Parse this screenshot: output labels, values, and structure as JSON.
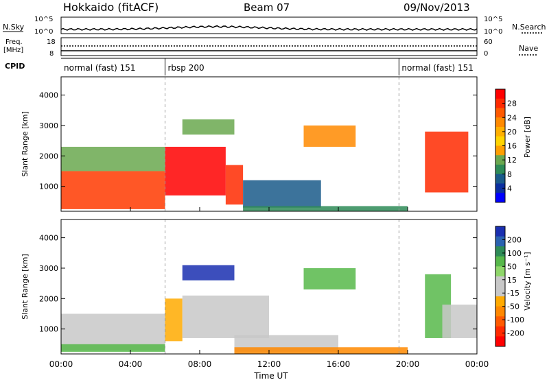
{
  "header": {
    "station": "Hokkaido (fitACF)",
    "beam": "Beam 07",
    "date": "09/Nov/2013"
  },
  "top_panels": {
    "nsky": {
      "left_label": "N.Sky",
      "right_label": "N.Search",
      "left_ticks": [
        "10^5",
        "10^0"
      ],
      "right_ticks": [
        "10^5",
        "10^0"
      ]
    },
    "freq": {
      "left_label_1": "Freq.",
      "left_label_2": "[MHz]",
      "right_label": "Nave",
      "left_ticks": [
        "18",
        "8"
      ],
      "right_ticks": [
        "60",
        "0"
      ]
    },
    "cpid": {
      "label": "CPID",
      "modes": [
        {
          "name": "normal (fast) 151",
          "start_h": 0,
          "end_h": 6
        },
        {
          "name": "rbsp 200",
          "start_h": 6,
          "end_h": 19.5
        },
        {
          "name": "normal (fast) 151",
          "start_h": 19.5,
          "end_h": 24
        }
      ]
    }
  },
  "colorbar_power": {
    "title": "Power [dB]",
    "ticks": [
      "28",
      "24",
      "20",
      "16",
      "12",
      "8",
      "4"
    ],
    "colors": [
      "#ff0000",
      "#ff2a00",
      "#ff5a00",
      "#ff8a00",
      "#ffb000",
      "#ffd400",
      "#ff9f00",
      "#6aa84f",
      "#2e8b57",
      "#1a5a8a",
      "#0b2fa0",
      "#0000ff"
    ]
  },
  "colorbar_velocity": {
    "title": "Velocity [m s⁻¹]",
    "ticks": [
      "200",
      "100",
      "50",
      "15",
      "-15",
      "-50",
      "-100",
      "-200"
    ],
    "colors": [
      "#1a2fb0",
      "#2a62b0",
      "#2e8b57",
      "#57b84a",
      "#8fd66a",
      "#c8c8c8",
      "#c8c8c8",
      "#ffaa00",
      "#ff8800",
      "#ff5a00",
      "#ff2a00",
      "#ff0000"
    ]
  },
  "axes": {
    "ylabel": "Slant Range [km]",
    "xlabel": "Time UT",
    "xticks": [
      "00:00",
      "04:00",
      "08:00",
      "12:00",
      "16:00",
      "20:00",
      "00:00"
    ],
    "yticks": [
      "1000",
      "2000",
      "3000",
      "4000"
    ]
  },
  "chart_data": [
    {
      "type": "heatmap",
      "title": "Power [dB]",
      "xlabel": "Time UT",
      "ylabel": "Slant Range [km]",
      "xlim": [
        0,
        24
      ],
      "ylim": [
        180,
        4600
      ],
      "zrange": [
        0,
        30
      ],
      "regions": [
        {
          "t0": 0.0,
          "t1": 6.0,
          "r0": 250,
          "r1": 1500,
          "value": 22,
          "color": "#ff3a00"
        },
        {
          "t0": 0.0,
          "t1": 6.0,
          "r0": 1500,
          "r1": 2300,
          "value": 12,
          "color": "#6aa84f"
        },
        {
          "t0": 6.0,
          "t1": 9.5,
          "r0": 700,
          "r1": 2300,
          "value": 28,
          "color": "#ff0000"
        },
        {
          "t0": 9.5,
          "t1": 10.5,
          "r0": 400,
          "r1": 1700,
          "value": 26,
          "color": "#ff2a00"
        },
        {
          "t0": 7.0,
          "t1": 10.0,
          "r0": 2700,
          "r1": 3200,
          "value": 14,
          "color": "#6aa84f"
        },
        {
          "t0": 10.5,
          "t1": 15.0,
          "r0": 300,
          "r1": 1200,
          "value": 8,
          "color": "#1a5a8a"
        },
        {
          "t0": 14.0,
          "t1": 17.0,
          "r0": 2300,
          "r1": 3000,
          "value": 20,
          "color": "#ff8a00"
        },
        {
          "t0": 10.5,
          "t1": 20.0,
          "r0": 180,
          "r1": 350,
          "value": 10,
          "color": "#2e8b57"
        },
        {
          "t0": 21.0,
          "t1": 23.5,
          "r0": 800,
          "r1": 2800,
          "value": 24,
          "color": "#ff2a00"
        }
      ]
    },
    {
      "type": "heatmap",
      "title": "Velocity [m s⁻¹]",
      "xlabel": "Time UT",
      "ylabel": "Slant Range [km]",
      "xlim": [
        0,
        24
      ],
      "ylim": [
        180,
        4600
      ],
      "zrange": [
        -200,
        200
      ],
      "regions": [
        {
          "t0": 0.0,
          "t1": 6.0,
          "r0": 300,
          "r1": 1500,
          "value": 0,
          "color": "#c8c8c8"
        },
        {
          "t0": 0.0,
          "t1": 6.0,
          "r0": 250,
          "r1": 500,
          "value": 40,
          "color": "#57b84a"
        },
        {
          "t0": 6.0,
          "t1": 7.0,
          "r0": 600,
          "r1": 2000,
          "value": -70,
          "color": "#ffaa00"
        },
        {
          "t0": 7.0,
          "t1": 12.0,
          "r0": 700,
          "r1": 2100,
          "value": 0,
          "color": "#c8c8c8"
        },
        {
          "t0": 7.0,
          "t1": 10.0,
          "r0": 2600,
          "r1": 3100,
          "value": 200,
          "color": "#1a2fb0"
        },
        {
          "t0": 10.0,
          "t1": 16.0,
          "r0": 250,
          "r1": 800,
          "value": 0,
          "color": "#c8c8c8"
        },
        {
          "t0": 10.0,
          "t1": 20.0,
          "r0": 180,
          "r1": 400,
          "value": -60,
          "color": "#ff8800"
        },
        {
          "t0": 14.0,
          "t1": 17.0,
          "r0": 2300,
          "r1": 3000,
          "value": 40,
          "color": "#57b84a"
        },
        {
          "t0": 21.0,
          "t1": 22.5,
          "r0": 700,
          "r1": 2800,
          "value": 30,
          "color": "#57b84a"
        },
        {
          "t0": 22.0,
          "t1": 24.0,
          "r0": 700,
          "r1": 1800,
          "value": 0,
          "color": "#c8c8c8"
        }
      ]
    }
  ]
}
